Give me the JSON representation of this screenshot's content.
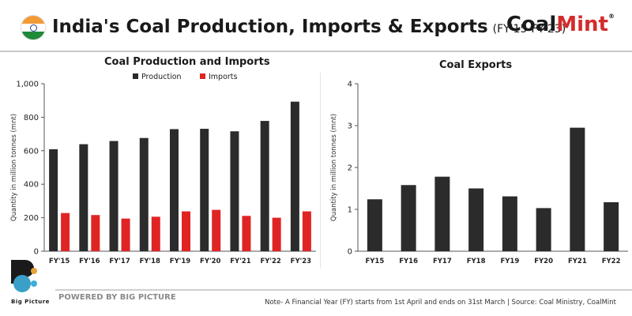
{
  "header": {
    "title": "India's Coal Production, Imports & Exports",
    "subtitle": "(FY'15-FY'23)",
    "brand_left": "Coal",
    "brand_right": "Mint",
    "brand_reg": "®"
  },
  "colors": {
    "production": "#2b2b2b",
    "imports": "#e02424",
    "exports": "#2b2b2b",
    "brand_accent": "#d42b2b"
  },
  "chart_data": [
    {
      "type": "bar",
      "title": "Coal Production and Imports",
      "ylabel": "Quantity in million tonnes (mnt)",
      "xlabel": "",
      "categories": [
        "FY'15",
        "FY'16",
        "FY'17",
        "FY'18",
        "FY'19",
        "FY'20",
        "FY'21",
        "FY'22",
        "FY'23"
      ],
      "series": [
        {
          "name": "Production",
          "values": [
            609,
            639,
            658,
            676,
            729,
            731,
            716,
            778,
            893
          ]
        },
        {
          "name": "Imports",
          "values": [
            228,
            216,
            195,
            206,
            238,
            247,
            211,
            200,
            238
          ]
        }
      ],
      "ylim": [
        0,
        1000
      ],
      "yticks": [
        "0",
        "200",
        "400",
        "600",
        "800",
        "1,000"
      ],
      "grid": false,
      "legend": "top-left"
    },
    {
      "type": "bar",
      "title": "Coal Exports",
      "ylabel": "Quantity in million tonnes (mnt)",
      "xlabel": "",
      "categories": [
        "FY15",
        "FY16",
        "FY17",
        "FY18",
        "FY19",
        "FY20",
        "FY21",
        "FY22"
      ],
      "series": [
        {
          "values": [
            1.24,
            1.58,
            1.78,
            1.5,
            1.31,
            1.03,
            2.95,
            1.17
          ]
        }
      ],
      "ylim": [
        0,
        4
      ],
      "yticks": [
        "0",
        "1",
        "2",
        "3",
        "4"
      ],
      "grid": false
    }
  ],
  "footer": {
    "logo_text": "Big Picture",
    "powered": "POWERED BY BIG PICTURE",
    "note": "Note- A Financial Year (FY) starts from 1st April and ends on 31st March  |  Source: Coal Ministry, CoalMint"
  }
}
